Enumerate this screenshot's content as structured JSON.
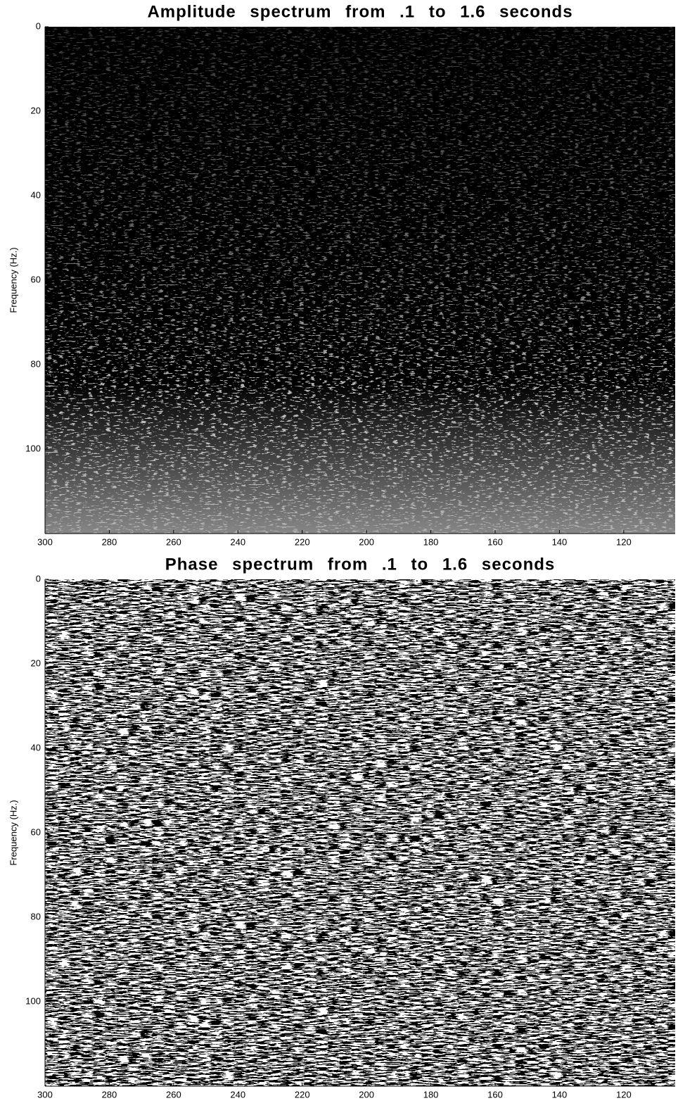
{
  "chart_data": [
    {
      "type": "image",
      "title": "Amplitude spectrum from .1 to 1.6 seconds",
      "ylabel": "Frequency (Hz.)",
      "xlim": [
        300,
        104
      ],
      "ylim": [
        0,
        120
      ],
      "xticks": [
        300,
        280,
        260,
        240,
        220,
        200,
        180,
        160,
        140,
        120
      ],
      "yticks": [
        0,
        20,
        40,
        60,
        80,
        100
      ],
      "colormap": "gray"
    },
    {
      "type": "image",
      "title": "Phase spectrum from .1 to 1.6 seconds",
      "ylabel": "Frequency (Hz.)",
      "xlim": [
        300,
        104
      ],
      "ylim": [
        0,
        120
      ],
      "xticks": [
        300,
        280,
        260,
        240,
        220,
        200,
        180,
        160,
        140,
        120
      ],
      "yticks": [
        0,
        20,
        40,
        60,
        80,
        100
      ],
      "colormap": "binary"
    }
  ]
}
